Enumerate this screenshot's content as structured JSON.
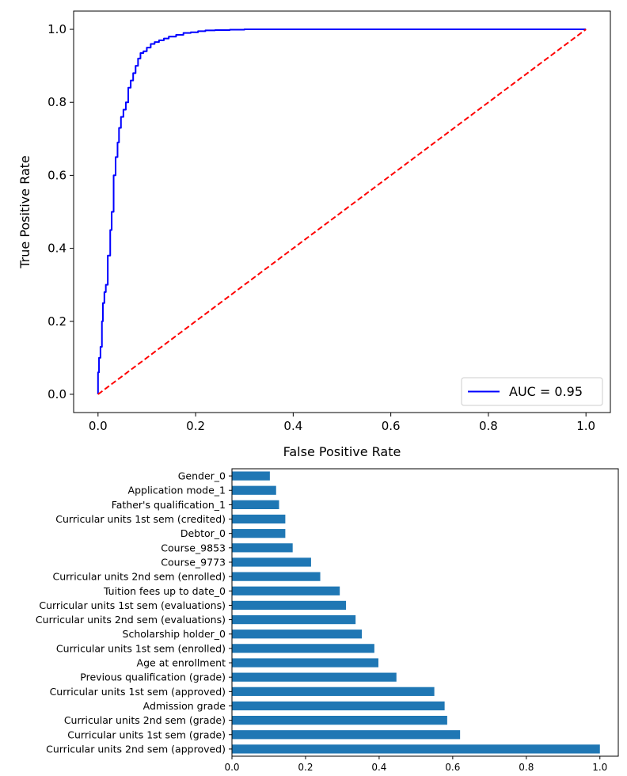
{
  "chart_data": [
    {
      "type": "line",
      "xlabel": "False Positive Rate",
      "ylabel": "True Positive Rate",
      "xlim": [
        -0.05,
        1.05
      ],
      "ylim": [
        -0.05,
        1.05
      ],
      "xticks": [
        "0.0",
        "0.2",
        "0.4",
        "0.6",
        "0.8",
        "1.0"
      ],
      "yticks": [
        "0.0",
        "0.2",
        "0.4",
        "0.6",
        "0.8",
        "1.0"
      ],
      "grid": false,
      "legend": "lower-right",
      "series": [
        {
          "name": "AUC = 0.95",
          "color": "#0000ff",
          "x": [
            0.0,
            0.0,
            0.002,
            0.002,
            0.005,
            0.005,
            0.008,
            0.008,
            0.01,
            0.01,
            0.013,
            0.013,
            0.016,
            0.016,
            0.02,
            0.02,
            0.025,
            0.025,
            0.028,
            0.028,
            0.032,
            0.032,
            0.036,
            0.036,
            0.04,
            0.04,
            0.043,
            0.043,
            0.047,
            0.047,
            0.052,
            0.052,
            0.057,
            0.057,
            0.062,
            0.062,
            0.067,
            0.067,
            0.072,
            0.072,
            0.077,
            0.077,
            0.082,
            0.082,
            0.087,
            0.087,
            0.093,
            0.093,
            0.1,
            0.1,
            0.108,
            0.108,
            0.116,
            0.116,
            0.125,
            0.125,
            0.135,
            0.135,
            0.145,
            0.145,
            0.16,
            0.16,
            0.175,
            0.175,
            0.19,
            0.19,
            0.205,
            0.205,
            0.22,
            0.22,
            0.24,
            0.24,
            0.27,
            0.27,
            0.3,
            0.3,
            0.4,
            0.4,
            1.0
          ],
          "y": [
            0.0,
            0.06,
            0.06,
            0.1,
            0.1,
            0.13,
            0.13,
            0.2,
            0.2,
            0.25,
            0.25,
            0.28,
            0.28,
            0.3,
            0.3,
            0.38,
            0.38,
            0.45,
            0.45,
            0.5,
            0.5,
            0.6,
            0.6,
            0.65,
            0.65,
            0.69,
            0.69,
            0.73,
            0.73,
            0.76,
            0.76,
            0.78,
            0.78,
            0.8,
            0.8,
            0.84,
            0.84,
            0.86,
            0.86,
            0.88,
            0.88,
            0.9,
            0.9,
            0.92,
            0.92,
            0.935,
            0.935,
            0.94,
            0.94,
            0.95,
            0.95,
            0.96,
            0.96,
            0.965,
            0.965,
            0.97,
            0.97,
            0.975,
            0.975,
            0.98,
            0.98,
            0.985,
            0.985,
            0.99,
            0.99,
            0.992,
            0.992,
            0.995,
            0.995,
            0.997,
            0.997,
            0.998,
            0.998,
            0.999,
            0.999,
            1.0,
            1.0,
            1.0,
            1.0
          ]
        },
        {
          "color": "#ff0000",
          "style": "dashed",
          "x": [
            0,
            1
          ],
          "y": [
            0,
            1
          ]
        }
      ]
    },
    {
      "type": "bar",
      "orientation": "horizontal",
      "color": "#1f77b4",
      "xlim": [
        0,
        1.05
      ],
      "xticks": [
        "0.0",
        "0.2",
        "0.4",
        "0.6",
        "0.8",
        "1.0"
      ],
      "categories": [
        "Curricular units 2nd sem (approved)",
        "Curricular units 1st sem (grade)",
        "Curricular units 2nd sem (grade)",
        "Admission grade",
        "Curricular units 1st sem (approved)",
        "Previous qualification (grade)",
        "Age at enrollment",
        "Curricular units 1st sem (enrolled)",
        "Scholarship holder_0",
        "Curricular units 2nd sem (evaluations)",
        "Curricular units 1st sem (evaluations)",
        "Tuition fees up to date_0",
        "Curricular units 2nd sem (enrolled)",
        "Course_9773",
        "Course_9853",
        "Debtor_0",
        "Curricular units 1st sem (credited)",
        "Father's qualification_1",
        "Application mode_1",
        "Gender_0"
      ],
      "values": [
        1.0,
        0.62,
        0.585,
        0.578,
        0.55,
        0.447,
        0.398,
        0.387,
        0.353,
        0.336,
        0.31,
        0.293,
        0.24,
        0.215,
        0.165,
        0.145,
        0.145,
        0.128,
        0.12,
        0.103
      ]
    }
  ]
}
